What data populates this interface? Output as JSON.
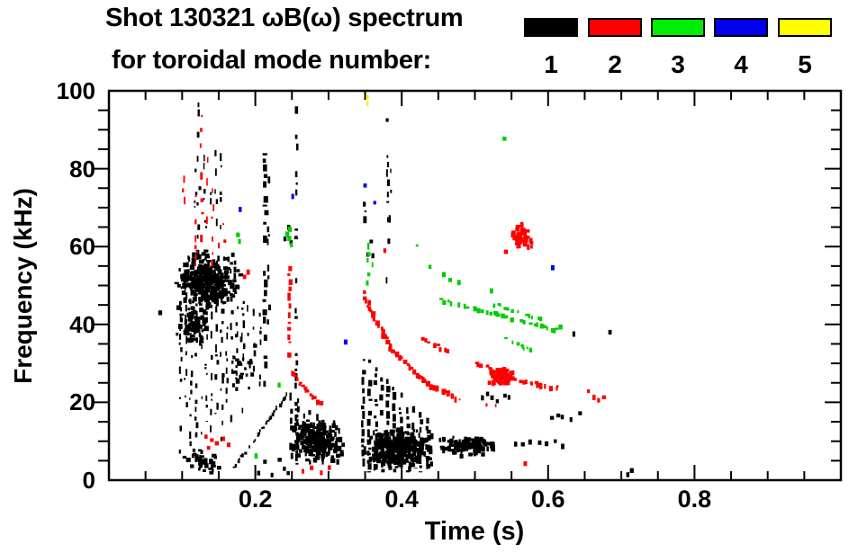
{
  "header": {
    "title_line1": "Shot 130321 ωB(ω) spectrum",
    "title_line2": "for toroidal mode number:"
  },
  "legend": {
    "entries": [
      {
        "label": "1",
        "color": "#000000"
      },
      {
        "label": "2",
        "color": "#ff0000"
      },
      {
        "label": "3",
        "color": "#00ee00"
      },
      {
        "label": "4",
        "color": "#0000ee"
      },
      {
        "label": "5",
        "color": "#ffff00"
      }
    ]
  },
  "chart_data": {
    "type": "scatter",
    "title": "Shot 130321 ωB(ω) spectrum for toroidal mode number: 1-5",
    "xlabel": "Time (s)",
    "ylabel": "Frequency (kHz)",
    "xlim": [
      0,
      1
    ],
    "ylim": [
      0,
      100
    ],
    "x_major_ticks": [
      0.2,
      0.4,
      0.6,
      0.8
    ],
    "x_tick_labels": [
      "0.2",
      "0.4",
      "0.6",
      "0.8"
    ],
    "x_minor_step": 0.05,
    "y_major_ticks": [
      0,
      20,
      40,
      60,
      80,
      100
    ],
    "y_tick_labels": [
      "0",
      "20",
      "40",
      "60",
      "80",
      "100"
    ],
    "y_minor_step": 5,
    "grid": false,
    "legend_position": "top-right above plot",
    "series": [
      {
        "name": "n = 1",
        "mode_number": 1,
        "color": "#000000",
        "points": [
          [
            0.069,
            43
          ],
          [
            0.241,
            62
          ],
          [
            0.2445,
            65
          ],
          [
            0.248,
            61
          ],
          [
            0.353,
            58
          ],
          [
            0.357,
            61
          ],
          [
            0.361,
            57.5
          ],
          [
            0.51,
            21
          ],
          [
            0.517,
            22.3
          ],
          [
            0.524,
            21
          ],
          [
            0.531,
            20.3
          ],
          [
            0.54,
            21.8
          ],
          [
            0.547,
            21.2
          ],
          [
            0.604,
            16
          ],
          [
            0.612,
            16.5
          ],
          [
            0.62,
            16
          ],
          [
            0.631,
            15.8
          ],
          [
            0.642,
            17
          ],
          [
            0.635,
            37.8
          ],
          [
            0.684,
            38.2
          ],
          [
            0.709,
            1.5
          ],
          [
            0.714,
            2.5
          ],
          [
            0.203,
            2
          ],
          [
            0.213,
            4.5
          ],
          [
            0.222,
            1.5
          ],
          [
            0.2315,
            5
          ],
          [
            0.239,
            3
          ],
          [
            0.2455,
            1.8
          ],
          [
            0.555,
            9.5
          ],
          [
            0.565,
            9
          ],
          [
            0.576,
            10
          ],
          [
            0.587,
            9.5
          ],
          [
            0.598,
            9.2
          ],
          [
            0.61,
            9.8
          ],
          [
            0.62,
            9
          ]
        ],
        "streaks": [
          [
            0.098,
            6,
            46,
            2,
            0.5
          ],
          [
            0.105,
            14,
            52,
            2,
            0.55
          ],
          [
            0.112,
            4,
            50,
            2,
            0.5
          ],
          [
            0.119,
            11,
            54,
            2.5,
            0.55
          ],
          [
            0.126,
            8,
            50,
            2,
            0.5
          ],
          [
            0.133,
            15,
            52,
            2,
            0.55
          ],
          [
            0.14,
            5,
            48,
            2,
            0.5
          ],
          [
            0.147,
            17,
            53,
            2.5,
            0.55
          ],
          [
            0.154,
            10,
            50,
            2,
            0.5
          ],
          [
            0.161,
            19,
            52,
            2,
            0.55
          ],
          [
            0.168,
            13,
            48,
            2,
            0.5
          ],
          [
            0.175,
            21,
            50,
            2,
            0.55
          ],
          [
            0.183,
            16,
            46,
            2,
            0.5
          ],
          [
            0.191,
            23,
            45,
            2,
            0.5
          ],
          [
            0.199,
            27,
            44,
            2,
            0.5
          ],
          [
            0.207,
            20,
            43,
            2,
            0.5
          ],
          [
            0.1225,
            62,
            97,
            2.5,
            0.45
          ],
          [
            0.1315,
            63,
            88,
            2,
            0.4
          ],
          [
            0.1465,
            58,
            91,
            2,
            0.4
          ],
          [
            0.1535,
            61,
            84,
            2,
            0.4
          ],
          [
            0.118,
            70,
            80,
            2,
            0.35
          ],
          [
            0.138,
            66,
            74,
            2,
            0.35
          ],
          [
            0.2135,
            24,
            84,
            4,
            0.8
          ],
          [
            0.218,
            40,
            78,
            2.5,
            0.5
          ],
          [
            0.2565,
            3,
            96,
            3,
            0.5
          ],
          [
            0.381,
            48,
            98,
            2.5,
            0.45
          ],
          [
            0.3845,
            58,
            80,
            2,
            0.35
          ],
          [
            0.35,
            65.5,
            71.5,
            3,
            0.8
          ],
          [
            0.249,
            5,
            22.5,
            3,
            0.75
          ],
          [
            0.2575,
            4,
            21,
            3,
            0.75
          ],
          [
            0.266,
            5,
            19.5,
            3,
            0.75
          ],
          [
            0.275,
            4,
            18,
            3,
            0.75
          ],
          [
            0.284,
            5,
            17,
            3,
            0.75
          ],
          [
            0.293,
            4,
            15.5,
            3,
            0.75
          ],
          [
            0.302,
            5,
            14,
            3,
            0.7
          ],
          [
            0.311,
            4,
            12.5,
            3,
            0.7
          ],
          [
            0.3475,
            3,
            33,
            3.5,
            0.8
          ],
          [
            0.356,
            2,
            31,
            3.5,
            0.8
          ],
          [
            0.3645,
            3,
            29,
            3.5,
            0.8
          ],
          [
            0.373,
            2,
            27.5,
            3.5,
            0.8
          ],
          [
            0.3815,
            3,
            26,
            3.5,
            0.8
          ],
          [
            0.39,
            2,
            24,
            3.5,
            0.8
          ],
          [
            0.399,
            3,
            22.5,
            3.5,
            0.8
          ],
          [
            0.408,
            2,
            20.5,
            3.5,
            0.75
          ],
          [
            0.417,
            3,
            19,
            3.5,
            0.75
          ],
          [
            0.426,
            2,
            17.5,
            3.5,
            0.75
          ],
          [
            0.435,
            3,
            16,
            3.5,
            0.75
          ]
        ],
        "lines": [
          {
            "pts": [
              [
                0.171,
                3.5
              ],
              [
                0.243,
                22
              ]
            ],
            "w": 2.2,
            "d": 0.85
          }
        ],
        "blobs": [
          [
            0.087,
            0.177,
            43,
            60,
            320
          ],
          [
            0.09,
            0.135,
            35,
            45,
            70
          ],
          [
            0.096,
            0.15,
            1.5,
            9,
            40
          ],
          [
            0.15,
            0.21,
            20,
            40,
            25
          ],
          [
            0.246,
            0.318,
            5,
            16,
            230
          ],
          [
            0.345,
            0.442,
            3,
            14,
            330
          ],
          [
            0.442,
            0.532,
            6.5,
            12,
            110
          ]
        ]
      },
      {
        "name": "n = 2",
        "mode_number": 2,
        "color": "#ff0000",
        "points": [
          [
            0.185,
            52
          ],
          [
            0.1905,
            53.5
          ],
          [
            0.133,
            11
          ],
          [
            0.1405,
            10
          ],
          [
            0.1475,
            9.3
          ],
          [
            0.156,
            10.5
          ],
          [
            0.1635,
            9
          ],
          [
            0.136,
            8.3
          ],
          [
            0.265,
            2.5
          ],
          [
            0.277,
            3
          ],
          [
            0.289,
            2
          ],
          [
            0.3,
            3.2
          ],
          [
            0.568,
            4.4
          ],
          [
            0.378,
            59
          ],
          [
            0.542,
            58.8
          ],
          [
            0.655,
            22.8
          ],
          [
            0.6615,
            21.5
          ],
          [
            0.668,
            20.6
          ],
          [
            0.675,
            21
          ]
        ],
        "streaks": [
          [
            0.1025,
            63,
            86,
            2.5,
            0.45
          ],
          [
            0.1185,
            55,
            80,
            2,
            0.4
          ],
          [
            0.1265,
            60,
            96.5,
            2.5,
            0.45
          ],
          [
            0.134,
            63,
            83,
            2,
            0.4
          ],
          [
            0.1415,
            55,
            75,
            2,
            0.4
          ],
          [
            0.149,
            58,
            70,
            2,
            0.4
          ],
          [
            0.157,
            57,
            66,
            2.5,
            0.45
          ],
          [
            0.163,
            58,
            64,
            2,
            0.4
          ],
          [
            0.2465,
            30,
            55,
            3.5,
            0.8
          ]
        ],
        "lines": [
          {
            "pts": [
              [
                0.2485,
                28.5
              ],
              [
                0.268,
                23
              ],
              [
                0.289,
                19.8
              ]
            ],
            "w": 3,
            "d": 0.8
          },
          {
            "pts": [
              [
                0.3475,
                48
              ],
              [
                0.3845,
                34
              ],
              [
                0.4335,
                25
              ],
              [
                0.474,
                21.3
              ]
            ],
            "w": 3.5,
            "d": 0.85
          },
          {
            "pts": [
              [
                0.474,
                21.3
              ],
              [
                0.512,
                19.8
              ],
              [
                0.548,
                19.2
              ]
            ],
            "w": 2.2,
            "d": 0.3
          },
          {
            "pts": [
              [
                0.42,
                37
              ],
              [
                0.462,
                33.3
              ]
            ],
            "w": 3,
            "d": 0.5
          },
          {
            "pts": [
              [
                0.502,
                30.2
              ],
              [
                0.532,
                27.6
              ],
              [
                0.558,
                25.8
              ],
              [
                0.59,
                24.6
              ],
              [
                0.614,
                23.9
              ]
            ],
            "w": 3,
            "d": 0.7
          }
        ],
        "blobs": [
          [
            0.512,
            0.557,
            25,
            29.5,
            60
          ],
          [
            0.547,
            0.579,
            59.5,
            66.5,
            45
          ]
        ]
      },
      {
        "name": "n = 3",
        "mode_number": 3,
        "color": "#00cc00",
        "points": [
          [
            0.175,
            63
          ],
          [
            0.179,
            61.5
          ],
          [
            0.2425,
            63.5
          ],
          [
            0.246,
            62
          ],
          [
            0.2495,
            60.5
          ],
          [
            0.247,
            64.5
          ],
          [
            0.202,
            6.2
          ],
          [
            0.521,
            48.6
          ],
          [
            0.54,
            87.8
          ],
          [
            0.232,
            24.7
          ],
          [
            0.615,
            39.6
          ],
          [
            0.457,
            52.8
          ],
          [
            0.4665,
            51.6
          ],
          [
            0.477,
            50.8
          ]
        ],
        "streaks": [
          [
            0.354,
            50,
            61,
            3,
            0.7
          ],
          [
            0.3595,
            52,
            56,
            2,
            0.5
          ]
        ],
        "lines": [
          {
            "pts": [
              [
                0.42,
                60.2
              ],
              [
                0.4445,
                53.5
              ]
            ],
            "w": 3,
            "d": 0.55
          },
          {
            "pts": [
              [
                0.4515,
                46.3
              ],
              [
                0.505,
                44
              ],
              [
                0.556,
                41.4
              ],
              [
                0.6055,
                38.8
              ],
              [
                0.621,
                38.2
              ]
            ],
            "w": 3,
            "d": 0.5
          },
          {
            "pts": [
              [
                0.489,
                47.2
              ],
              [
                0.531,
                45
              ],
              [
                0.5655,
                43
              ],
              [
                0.592,
                41.2
              ]
            ],
            "w": 2.5,
            "d": 0.4
          },
          {
            "pts": [
              [
                0.5415,
                36.2
              ],
              [
                0.5655,
                34.4
              ],
              [
                0.583,
                32.7
              ]
            ],
            "w": 2.5,
            "d": 0.55
          }
        ],
        "blobs": []
      },
      {
        "name": "n = 4",
        "mode_number": 4,
        "color": "#0000ee",
        "points": [
          [
            0.178,
            69.4
          ],
          [
            0.2515,
            72.8
          ],
          [
            0.3495,
            75.8
          ],
          [
            0.3625,
            71
          ],
          [
            0.3235,
            35.5
          ],
          [
            0.6055,
            54.6
          ]
        ],
        "streaks": [],
        "lines": [],
        "blobs": []
      },
      {
        "name": "n = 5",
        "mode_number": 5,
        "color": "#ffee00",
        "points": [],
        "streaks": [
          [
            0.3535,
            96,
            99,
            3,
            0.8
          ]
        ],
        "lines": [],
        "blobs": []
      }
    ]
  }
}
